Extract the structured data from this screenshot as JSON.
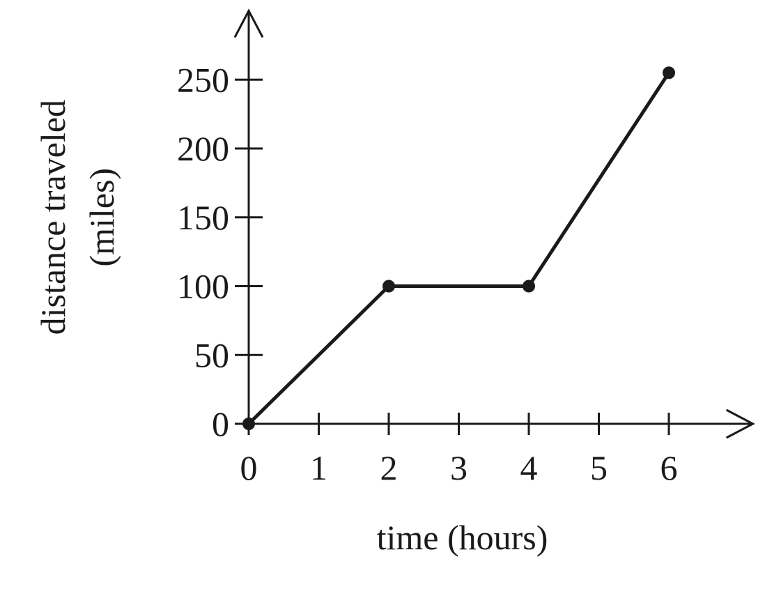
{
  "chart_data": {
    "type": "line",
    "title": "",
    "xlabel": "time (hours)",
    "ylabel": "distance traveled",
    "ylabel_unit": "(miles)",
    "x_ticks": [
      0,
      1,
      2,
      3,
      4,
      5,
      6
    ],
    "y_ticks": [
      0,
      50,
      100,
      150,
      200,
      250
    ],
    "xlim": [
      0,
      7.2
    ],
    "ylim": [
      0,
      300
    ],
    "grid": false,
    "series": [
      {
        "x": [
          0,
          2,
          4,
          6
        ],
        "y": [
          0,
          100,
          100,
          255
        ]
      }
    ],
    "colors": {
      "ink": "#1a1a1a"
    }
  }
}
